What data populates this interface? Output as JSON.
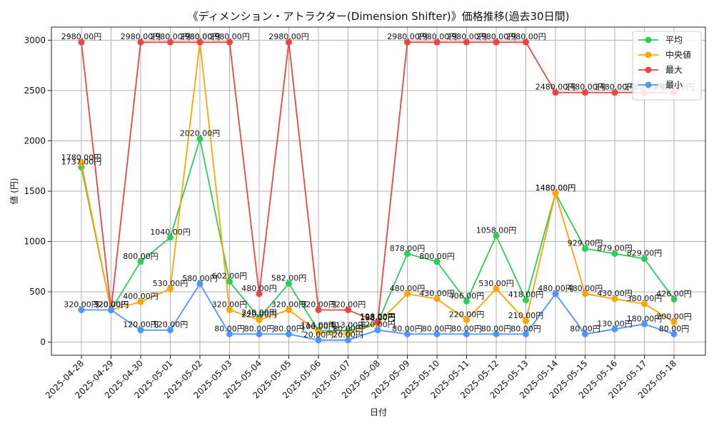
{
  "chart_data": {
    "type": "line",
    "title": "《ディメンション・アトラクター(Dimension Shifter)》価格推移(過去30日間)",
    "xlabel": "日付",
    "ylabel": "値 (円)",
    "ylim": [
      -130,
      3130
    ],
    "yticks": [
      0,
      500,
      1000,
      1500,
      2000,
      2500,
      3000
    ],
    "grid": true,
    "legend_position": "top-right",
    "label_suffix": "円",
    "categories": [
      "2025-04-28",
      "2025-04-29",
      "2025-04-30",
      "2025-05-01",
      "2025-05-02",
      "2025-05-03",
      "2025-05-04",
      "2025-05-05",
      "2025-05-06",
      "2025-05-07",
      "2025-05-08",
      "2025-05-09",
      "2025-05-10",
      "2025-05-11",
      "2025-05-12",
      "2025-05-13",
      "2025-05-14",
      "2025-05-15",
      "2025-05-16",
      "2025-05-17",
      "2025-05-18"
    ],
    "series": [
      {
        "name": "平均",
        "color": "#2ecc5b",
        "values": [
          1737,
          320,
          800,
          1040,
          2020,
          602,
          240,
          582,
          114,
          113,
          193,
          878,
          800,
          406,
          1058,
          418,
          1480,
          929,
          879,
          829,
          426
        ]
      },
      {
        "name": "中央値",
        "color": "#ffa500",
        "values": [
          1780,
          320,
          400,
          530,
          2980,
          320,
          220,
          320,
          100,
          80,
          188,
          480,
          430,
          220,
          530,
          210,
          1480,
          480,
          430,
          380,
          200
        ]
      },
      {
        "name": "最大",
        "color": "#ee4444",
        "values": [
          2980,
          320,
          2980,
          2980,
          2980,
          2980,
          480,
          2980,
          320,
          320,
          198,
          2980,
          2980,
          2980,
          2980,
          2980,
          2480,
          2480,
          2480,
          2480,
          2480
        ]
      },
      {
        "name": "最小",
        "color": "#4d96ff",
        "values": [
          320,
          320,
          120,
          120,
          580,
          80,
          80,
          80,
          20,
          20,
          120,
          80,
          80,
          80,
          80,
          80,
          480,
          80,
          130,
          180,
          80
        ]
      }
    ]
  }
}
